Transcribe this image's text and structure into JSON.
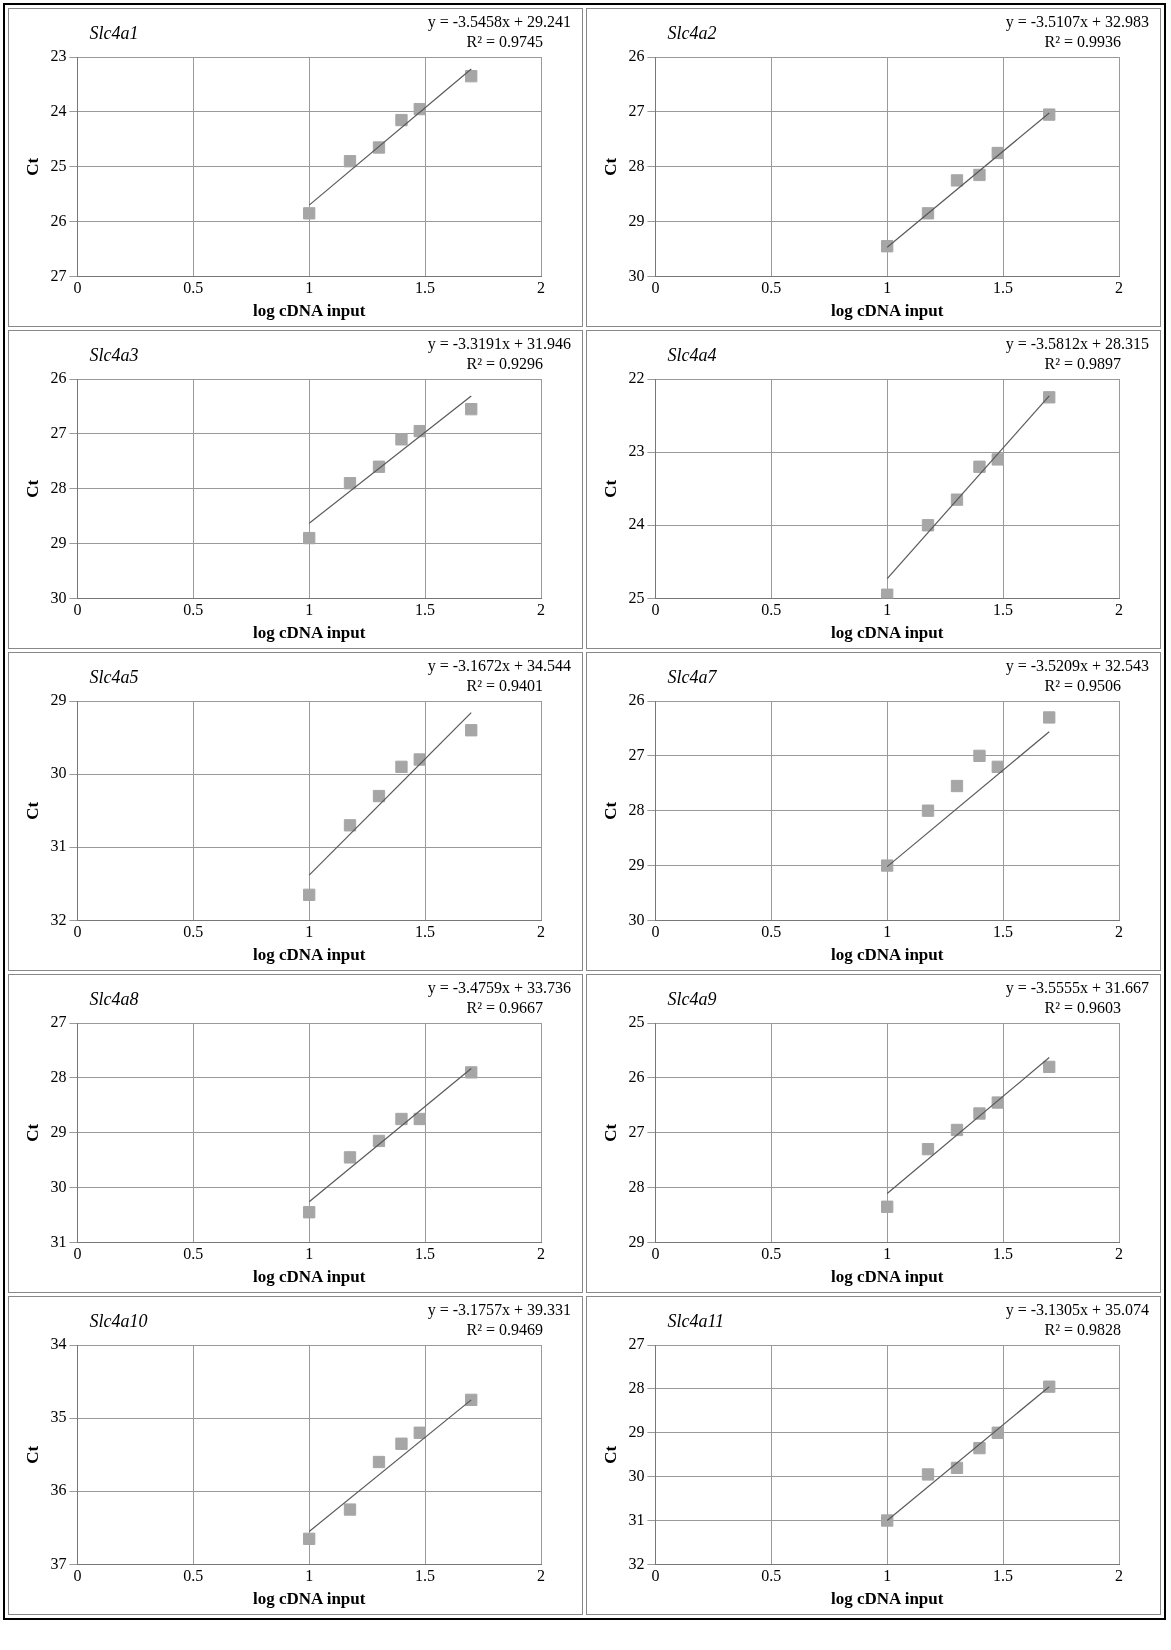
{
  "chart_data": [
    {
      "type": "scatter",
      "title": "Slc4a1",
      "annotations": [
        "y = -3.5458x + 29.241",
        "R² = 0.9745"
      ],
      "xlabel": "log cDNA input",
      "ylabel": "Ct",
      "xlim": [
        0,
        2
      ],
      "xticks": [
        0,
        0.5,
        1,
        1.5,
        2
      ],
      "ylim": [
        27,
        23
      ],
      "yticks": [
        23,
        24,
        25,
        26,
        27
      ],
      "grid": true,
      "legend": false,
      "marker": "square",
      "series": [
        {
          "color": "#a6a6a6",
          "x": [
            1,
            1.176,
            1.301,
            1.398,
            1.477,
            1.699
          ],
          "values": [
            25.85,
            24.9,
            24.65,
            24.15,
            23.95,
            23.35
          ]
        },
        {
          "type": "line",
          "marker": "none",
          "color": "#595959",
          "x": [
            1,
            1.699
          ],
          "values": [
            25.7,
            23.22
          ]
        }
      ]
    },
    {
      "type": "scatter",
      "title": "Slc4a2",
      "annotations": [
        "y = -3.5107x + 32.983",
        "R² = 0.9936"
      ],
      "xlabel": "log cDNA input",
      "ylabel": "Ct",
      "xlim": [
        0,
        2
      ],
      "xticks": [
        0,
        0.5,
        1,
        1.5,
        2
      ],
      "ylim": [
        30,
        26
      ],
      "yticks": [
        26,
        27,
        28,
        29,
        30
      ],
      "grid": true,
      "legend": false,
      "marker": "square",
      "series": [
        {
          "color": "#a6a6a6",
          "x": [
            1,
            1.176,
            1.301,
            1.398,
            1.477,
            1.699
          ],
          "values": [
            29.45,
            28.85,
            28.25,
            28.15,
            27.75,
            27.05
          ]
        },
        {
          "type": "line",
          "marker": "none",
          "color": "#595959",
          "x": [
            1,
            1.699
          ],
          "values": [
            29.47,
            27.02
          ]
        }
      ]
    },
    {
      "type": "scatter",
      "title": "Slc4a3",
      "annotations": [
        "y = -3.3191x + 31.946",
        "R² = 0.9296"
      ],
      "xlabel": "log cDNA input",
      "ylabel": "Ct",
      "xlim": [
        0,
        2
      ],
      "xticks": [
        0,
        0.5,
        1,
        1.5,
        2
      ],
      "ylim": [
        30,
        26
      ],
      "yticks": [
        26,
        27,
        28,
        29,
        30
      ],
      "grid": true,
      "legend": false,
      "marker": "square",
      "series": [
        {
          "color": "#a6a6a6",
          "x": [
            1,
            1.176,
            1.301,
            1.398,
            1.477,
            1.699
          ],
          "values": [
            28.9,
            27.9,
            27.6,
            27.1,
            26.95,
            26.55
          ]
        },
        {
          "type": "line",
          "marker": "none",
          "color": "#595959",
          "x": [
            1,
            1.699
          ],
          "values": [
            28.63,
            26.31
          ]
        }
      ]
    },
    {
      "type": "scatter",
      "title": "Slc4a4",
      "annotations": [
        "y = -3.5812x + 28.315",
        "R² = 0.9897"
      ],
      "xlabel": "log cDNA input",
      "ylabel": "Ct",
      "xlim": [
        0,
        2
      ],
      "xticks": [
        0,
        0.5,
        1,
        1.5,
        2
      ],
      "ylim": [
        25,
        22
      ],
      "yticks": [
        22,
        23,
        24,
        25
      ],
      "grid": true,
      "legend": false,
      "marker": "square",
      "series": [
        {
          "color": "#a6a6a6",
          "x": [
            1,
            1.176,
            1.301,
            1.398,
            1.477,
            1.699
          ],
          "values": [
            24.95,
            24.0,
            23.65,
            23.2,
            23.1,
            22.25
          ]
        },
        {
          "type": "line",
          "marker": "none",
          "color": "#595959",
          "x": [
            1,
            1.699
          ],
          "values": [
            24.73,
            22.23
          ]
        }
      ]
    },
    {
      "type": "scatter",
      "title": "Slc4a5",
      "annotations": [
        "y = -3.1672x + 34.544",
        "R² = 0.9401"
      ],
      "xlabel": "log cDNA input",
      "ylabel": "Ct",
      "xlim": [
        0,
        2
      ],
      "xticks": [
        0,
        0.5,
        1,
        1.5,
        2
      ],
      "ylim": [
        32,
        29
      ],
      "yticks": [
        29,
        30,
        31,
        32
      ],
      "grid": true,
      "legend": false,
      "marker": "square",
      "series": [
        {
          "color": "#a6a6a6",
          "x": [
            1,
            1.176,
            1.301,
            1.398,
            1.477,
            1.699
          ],
          "values": [
            31.65,
            30.7,
            30.3,
            29.9,
            29.8,
            29.4
          ]
        },
        {
          "type": "line",
          "marker": "none",
          "color": "#595959",
          "x": [
            1,
            1.699
          ],
          "values": [
            31.38,
            29.16
          ]
        }
      ]
    },
    {
      "type": "scatter",
      "title": "Slc4a7",
      "annotations": [
        "y = -3.5209x + 32.543",
        "R² = 0.9506"
      ],
      "xlabel": "log cDNA input",
      "ylabel": "Ct",
      "xlim": [
        0,
        2
      ],
      "xticks": [
        0,
        0.5,
        1,
        1.5,
        2
      ],
      "ylim": [
        30,
        26
      ],
      "yticks": [
        26,
        27,
        28,
        29,
        30
      ],
      "grid": true,
      "legend": false,
      "marker": "square",
      "series": [
        {
          "color": "#a6a6a6",
          "x": [
            1,
            1.176,
            1.301,
            1.398,
            1.477,
            1.699
          ],
          "values": [
            29.0,
            28.0,
            27.55,
            27.0,
            27.2,
            26.3
          ]
        },
        {
          "type": "line",
          "marker": "none",
          "color": "#595959",
          "x": [
            1,
            1.699
          ],
          "values": [
            29.02,
            26.56
          ]
        }
      ]
    },
    {
      "type": "scatter",
      "title": "Slc4a8",
      "annotations": [
        "y = -3.4759x + 33.736",
        "R² = 0.9667"
      ],
      "xlabel": "log cDNA input",
      "ylabel": "Ct",
      "xlim": [
        0,
        2
      ],
      "xticks": [
        0,
        0.5,
        1,
        1.5,
        2
      ],
      "ylim": [
        31,
        27
      ],
      "yticks": [
        27,
        28,
        29,
        30,
        31
      ],
      "grid": true,
      "legend": false,
      "marker": "square",
      "series": [
        {
          "color": "#a6a6a6",
          "x": [
            1,
            1.176,
            1.301,
            1.398,
            1.477,
            1.699
          ],
          "values": [
            30.45,
            29.45,
            29.15,
            28.75,
            28.75,
            27.9
          ]
        },
        {
          "type": "line",
          "marker": "none",
          "color": "#595959",
          "x": [
            1,
            1.699
          ],
          "values": [
            30.26,
            27.83
          ]
        }
      ]
    },
    {
      "type": "scatter",
      "title": "Slc4a9",
      "annotations": [
        "y = -3.5555x + 31.667",
        "R² = 0.9603"
      ],
      "xlabel": "log cDNA input",
      "ylabel": "Ct",
      "xlim": [
        0,
        2
      ],
      "xticks": [
        0,
        0.5,
        1,
        1.5,
        2
      ],
      "ylim": [
        29,
        25
      ],
      "yticks": [
        25,
        26,
        27,
        28,
        29
      ],
      "grid": true,
      "legend": false,
      "marker": "square",
      "series": [
        {
          "color": "#a6a6a6",
          "x": [
            1,
            1.176,
            1.301,
            1.398,
            1.477,
            1.699
          ],
          "values": [
            28.35,
            27.3,
            26.95,
            26.65,
            26.45,
            25.8
          ]
        },
        {
          "type": "line",
          "marker": "none",
          "color": "#595959",
          "x": [
            1,
            1.699
          ],
          "values": [
            28.11,
            25.63
          ]
        }
      ]
    },
    {
      "type": "scatter",
      "title": "Slc4a10",
      "annotations": [
        "y = -3.1757x + 39.331",
        "R² = 0.9469"
      ],
      "xlabel": "log cDNA input",
      "ylabel": "Ct",
      "xlim": [
        0,
        2
      ],
      "xticks": [
        0,
        0.5,
        1,
        1.5,
        2
      ],
      "ylim": [
        37,
        34
      ],
      "yticks": [
        34,
        35,
        36,
        37
      ],
      "grid": true,
      "legend": false,
      "marker": "square",
      "series": [
        {
          "color": "#a6a6a6",
          "x": [
            1,
            1.176,
            1.301,
            1.398,
            1.477,
            1.699
          ],
          "values": [
            36.65,
            36.25,
            35.6,
            35.35,
            35.2,
            34.75
          ]
        },
        {
          "type": "line",
          "marker": "none",
          "color": "#595959",
          "x": [
            1,
            1.699
          ],
          "values": [
            36.55,
            34.75
          ]
        }
      ]
    },
    {
      "type": "scatter",
      "title": "Slc4a11",
      "annotations": [
        "y = -3.1305x + 35.074",
        "R² = 0.9828"
      ],
      "xlabel": "log cDNA input",
      "ylabel": "Ct",
      "xlim": [
        0,
        2
      ],
      "xticks": [
        0,
        0.5,
        1,
        1.5,
        2
      ],
      "ylim": [
        32,
        27
      ],
      "yticks": [
        27,
        28,
        29,
        30,
        31,
        32
      ],
      "grid": true,
      "legend": false,
      "marker": "square",
      "series": [
        {
          "color": "#a6a6a6",
          "x": [
            1,
            1.176,
            1.301,
            1.398,
            1.477,
            1.699
          ],
          "values": [
            31.0,
            29.95,
            29.8,
            29.35,
            29.0,
            27.95
          ]
        },
        {
          "type": "line",
          "marker": "none",
          "color": "#595959",
          "x": [
            1,
            1.699
          ],
          "values": [
            31.0,
            27.95
          ]
        }
      ]
    }
  ]
}
